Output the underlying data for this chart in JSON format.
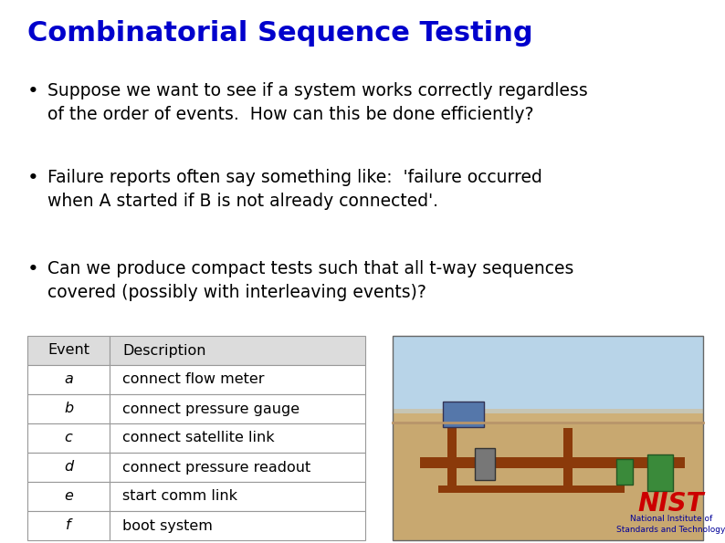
{
  "title": "Combinatorial Sequence Testing",
  "title_color": "#0000CC",
  "title_fontsize": 22,
  "background_color": "#FFFFFF",
  "bullet_points": [
    "Suppose we want to see if a system works correctly regardless\nof the order of events.  How can this be done efficiently?",
    "Failure reports often say something like:  'failure occurred\nwhen A started if B is not already connected'.",
    "Can we produce compact tests such that all t-way sequences\ncovered (possibly with interleaving events)?"
  ],
  "bullet_fontsize": 13.5,
  "bullet_color": "#000000",
  "table_headers": [
    "Event",
    "Description"
  ],
  "table_rows": [
    [
      "a",
      "connect flow meter"
    ],
    [
      "b",
      "connect pressure gauge"
    ],
    [
      "c",
      "connect satellite link"
    ],
    [
      "d",
      "connect pressure readout"
    ],
    [
      "e",
      "start comm link"
    ],
    [
      "f",
      "boot system"
    ]
  ],
  "table_header_bg": "#DCDCDC",
  "table_row_bg": "#FFFFFF",
  "table_fontsize": 11.5,
  "nist_logo_color": "#CC0000",
  "nist_text_color": "#000099",
  "photo_sky_color": "#B8D4E8",
  "photo_sand_color": "#C8A870",
  "photo_pipe_color": "#8B3A0A",
  "photo_equipment_color": "#555555",
  "photo_green_color": "#3A8A3A"
}
